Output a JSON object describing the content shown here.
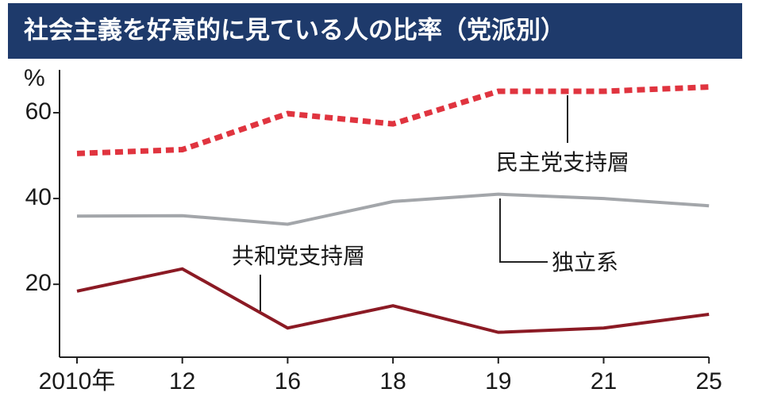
{
  "chart_data": {
    "type": "line",
    "title": "社会主義を好意的に見ている人の比率（党派別）",
    "y_unit": "%",
    "categories": [
      "2010年",
      "12",
      "16",
      "18",
      "19",
      "21",
      "25"
    ],
    "series": [
      {
        "name": "民主党支持層",
        "color": "#e0343f",
        "dashed": true,
        "values": [
          50.5,
          51.4,
          59.8,
          57.4,
          65,
          65,
          66
        ]
      },
      {
        "name": "独立系",
        "color": "#a3a6aa",
        "dashed": false,
        "values": [
          35.9,
          36,
          34,
          39.3,
          41,
          40,
          38.3
        ]
      },
      {
        "name": "共和党支持層",
        "color": "#8b1a24",
        "dashed": false,
        "values": [
          18.4,
          23.6,
          9.8,
          15,
          8.8,
          9.8,
          13
        ]
      }
    ],
    "ylim": [
      3,
      70
    ],
    "yticks": [
      20,
      40,
      60
    ],
    "grid": false
  }
}
